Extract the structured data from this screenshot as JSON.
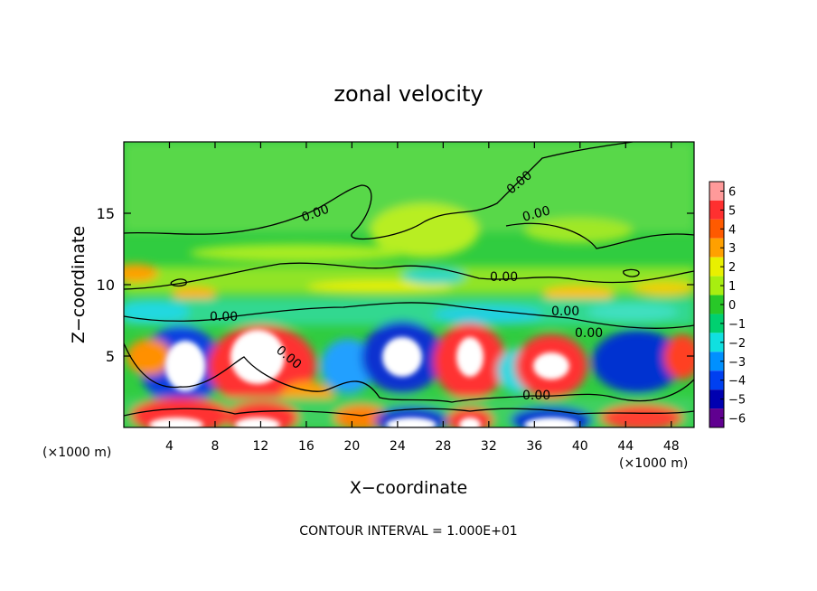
{
  "chart_data": {
    "type": "heatmap",
    "title": "zonal velocity",
    "xlabel": "X−coordinate",
    "ylabel": "Z−coordinate",
    "x_unit": "(×1000 m)",
    "x_unit_right": "(×1000 m)",
    "footer": "CONTOUR INTERVAL = 1.000E+01",
    "xlim": [
      0,
      50
    ],
    "ylim": [
      0,
      20
    ],
    "x_ticks": [
      4,
      8,
      12,
      16,
      20,
      24,
      28,
      32,
      36,
      40,
      44,
      48
    ],
    "y_ticks": [
      5,
      10,
      15
    ],
    "colorbar": {
      "levels": [
        6,
        5,
        4,
        3,
        2,
        1,
        0,
        -1,
        -2,
        -3,
        -4,
        -5,
        -6
      ],
      "labels": [
        "6",
        "5",
        "4",
        "3",
        "2",
        "1",
        "0",
        "−1",
        "−2",
        "−3",
        "−4",
        "−5",
        "−6"
      ],
      "colors": [
        "#ff9a9a",
        "#ff3030",
        "#ff5a00",
        "#ffa000",
        "#e8f000",
        "#a8ee10",
        "#28c828",
        "#00d070",
        "#10e0e0",
        "#0090ff",
        "#0040f0",
        "#0000b0",
        "#600090"
      ]
    },
    "contour_labels": [
      "0.00",
      "0.00",
      "0.00",
      "0.00",
      "0.00",
      "0.00",
      "0.00",
      "0.00"
    ]
  }
}
